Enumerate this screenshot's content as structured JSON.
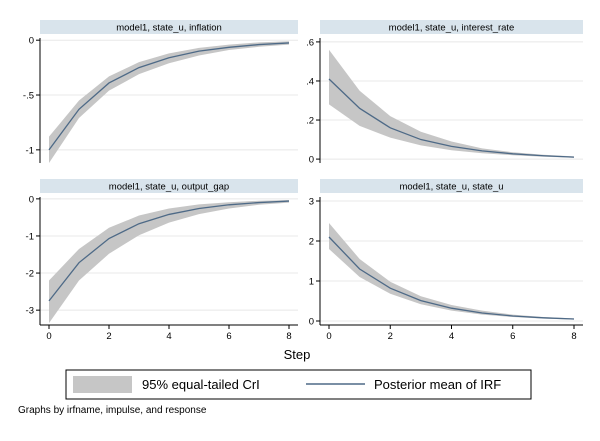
{
  "chart_data": [
    {
      "type": "area",
      "title": "model1, state_u, inflation",
      "x": [
        0,
        1,
        2,
        3,
        4,
        5,
        6,
        7,
        8
      ],
      "ylim": [
        -1.12,
        0.02
      ],
      "yticks": [
        "-1",
        "-.5",
        "0"
      ],
      "ytick_values": [
        -1,
        -0.5,
        0
      ],
      "series": [
        {
          "name": "95% equal-tailed CrI",
          "lower": [
            -1.12,
            -0.71,
            -0.46,
            -0.31,
            -0.21,
            -0.14,
            -0.09,
            -0.06,
            -0.04
          ],
          "upper": [
            -0.88,
            -0.55,
            -0.33,
            -0.2,
            -0.12,
            -0.07,
            -0.04,
            -0.02,
            -0.01
          ]
        },
        {
          "name": "Posterior mean of IRF",
          "values": [
            -1.0,
            -0.63,
            -0.39,
            -0.25,
            -0.16,
            -0.1,
            -0.065,
            -0.04,
            -0.025
          ]
        }
      ]
    },
    {
      "type": "area",
      "title": "model1, state_u, interest_rate",
      "x": [
        0,
        1,
        2,
        3,
        4,
        5,
        6,
        7,
        8
      ],
      "ylim": [
        -0.02,
        0.62
      ],
      "yticks": [
        "0",
        ".2",
        ".4",
        ".6"
      ],
      "ytick_values": [
        0,
        0.2,
        0.4,
        0.6
      ],
      "series": [
        {
          "name": "95% equal-tailed CrI",
          "lower": [
            0.28,
            0.17,
            0.11,
            0.07,
            0.045,
            0.03,
            0.02,
            0.012,
            0.007
          ],
          "upper": [
            0.56,
            0.35,
            0.22,
            0.14,
            0.09,
            0.055,
            0.035,
            0.022,
            0.014
          ]
        },
        {
          "name": "Posterior mean of IRF",
          "values": [
            0.41,
            0.26,
            0.16,
            0.1,
            0.065,
            0.042,
            0.027,
            0.017,
            0.01
          ]
        }
      ]
    },
    {
      "type": "area",
      "title": "model1, state_u, output_gap",
      "x": [
        0,
        1,
        2,
        3,
        4,
        5,
        6,
        7,
        8
      ],
      "ylim": [
        -3.4,
        0.05
      ],
      "yticks": [
        "-3",
        "-2",
        "-1",
        "0"
      ],
      "ytick_values": [
        -3,
        -2,
        -1,
        0
      ],
      "series": [
        {
          "name": "95% equal-tailed CrI",
          "lower": [
            -3.35,
            -2.2,
            -1.48,
            -0.98,
            -0.64,
            -0.41,
            -0.26,
            -0.16,
            -0.1
          ],
          "upper": [
            -2.2,
            -1.35,
            -0.78,
            -0.45,
            -0.26,
            -0.15,
            -0.09,
            -0.05,
            -0.03
          ]
        },
        {
          "name": "Posterior mean of IRF",
          "values": [
            -2.75,
            -1.72,
            -1.07,
            -0.67,
            -0.42,
            -0.26,
            -0.16,
            -0.1,
            -0.06
          ]
        }
      ]
    },
    {
      "type": "area",
      "title": "model1, state_u, state_u",
      "x": [
        0,
        1,
        2,
        3,
        4,
        5,
        6,
        7,
        8
      ],
      "ylim": [
        -0.1,
        3.1
      ],
      "yticks": [
        "0",
        "1",
        "2",
        "3"
      ],
      "ytick_values": [
        0,
        1,
        2,
        3
      ],
      "series": [
        {
          "name": "95% equal-tailed CrI",
          "lower": [
            1.8,
            1.1,
            0.68,
            0.42,
            0.26,
            0.16,
            0.1,
            0.06,
            0.035
          ],
          "upper": [
            2.45,
            1.55,
            0.98,
            0.62,
            0.4,
            0.26,
            0.16,
            0.1,
            0.065
          ]
        },
        {
          "name": "Posterior mean of IRF",
          "values": [
            2.1,
            1.3,
            0.82,
            0.51,
            0.32,
            0.2,
            0.125,
            0.08,
            0.05
          ]
        }
      ]
    }
  ],
  "xticks": [
    "0",
    "2",
    "4",
    "6",
    "8"
  ],
  "xtick_values": [
    0,
    2,
    4,
    6,
    8
  ],
  "xlabel": "Step",
  "legend": {
    "placement": "bottom",
    "band_label": "95% equal-tailed CrI",
    "line_label": "Posterior mean of IRF"
  },
  "note": "Graphs by irfname, impulse, and response",
  "colors": {
    "band": "#c6c6c6",
    "line": "#4e6a87",
    "title_bar": "#d9e4ec",
    "grid": "#e8e8e8"
  }
}
